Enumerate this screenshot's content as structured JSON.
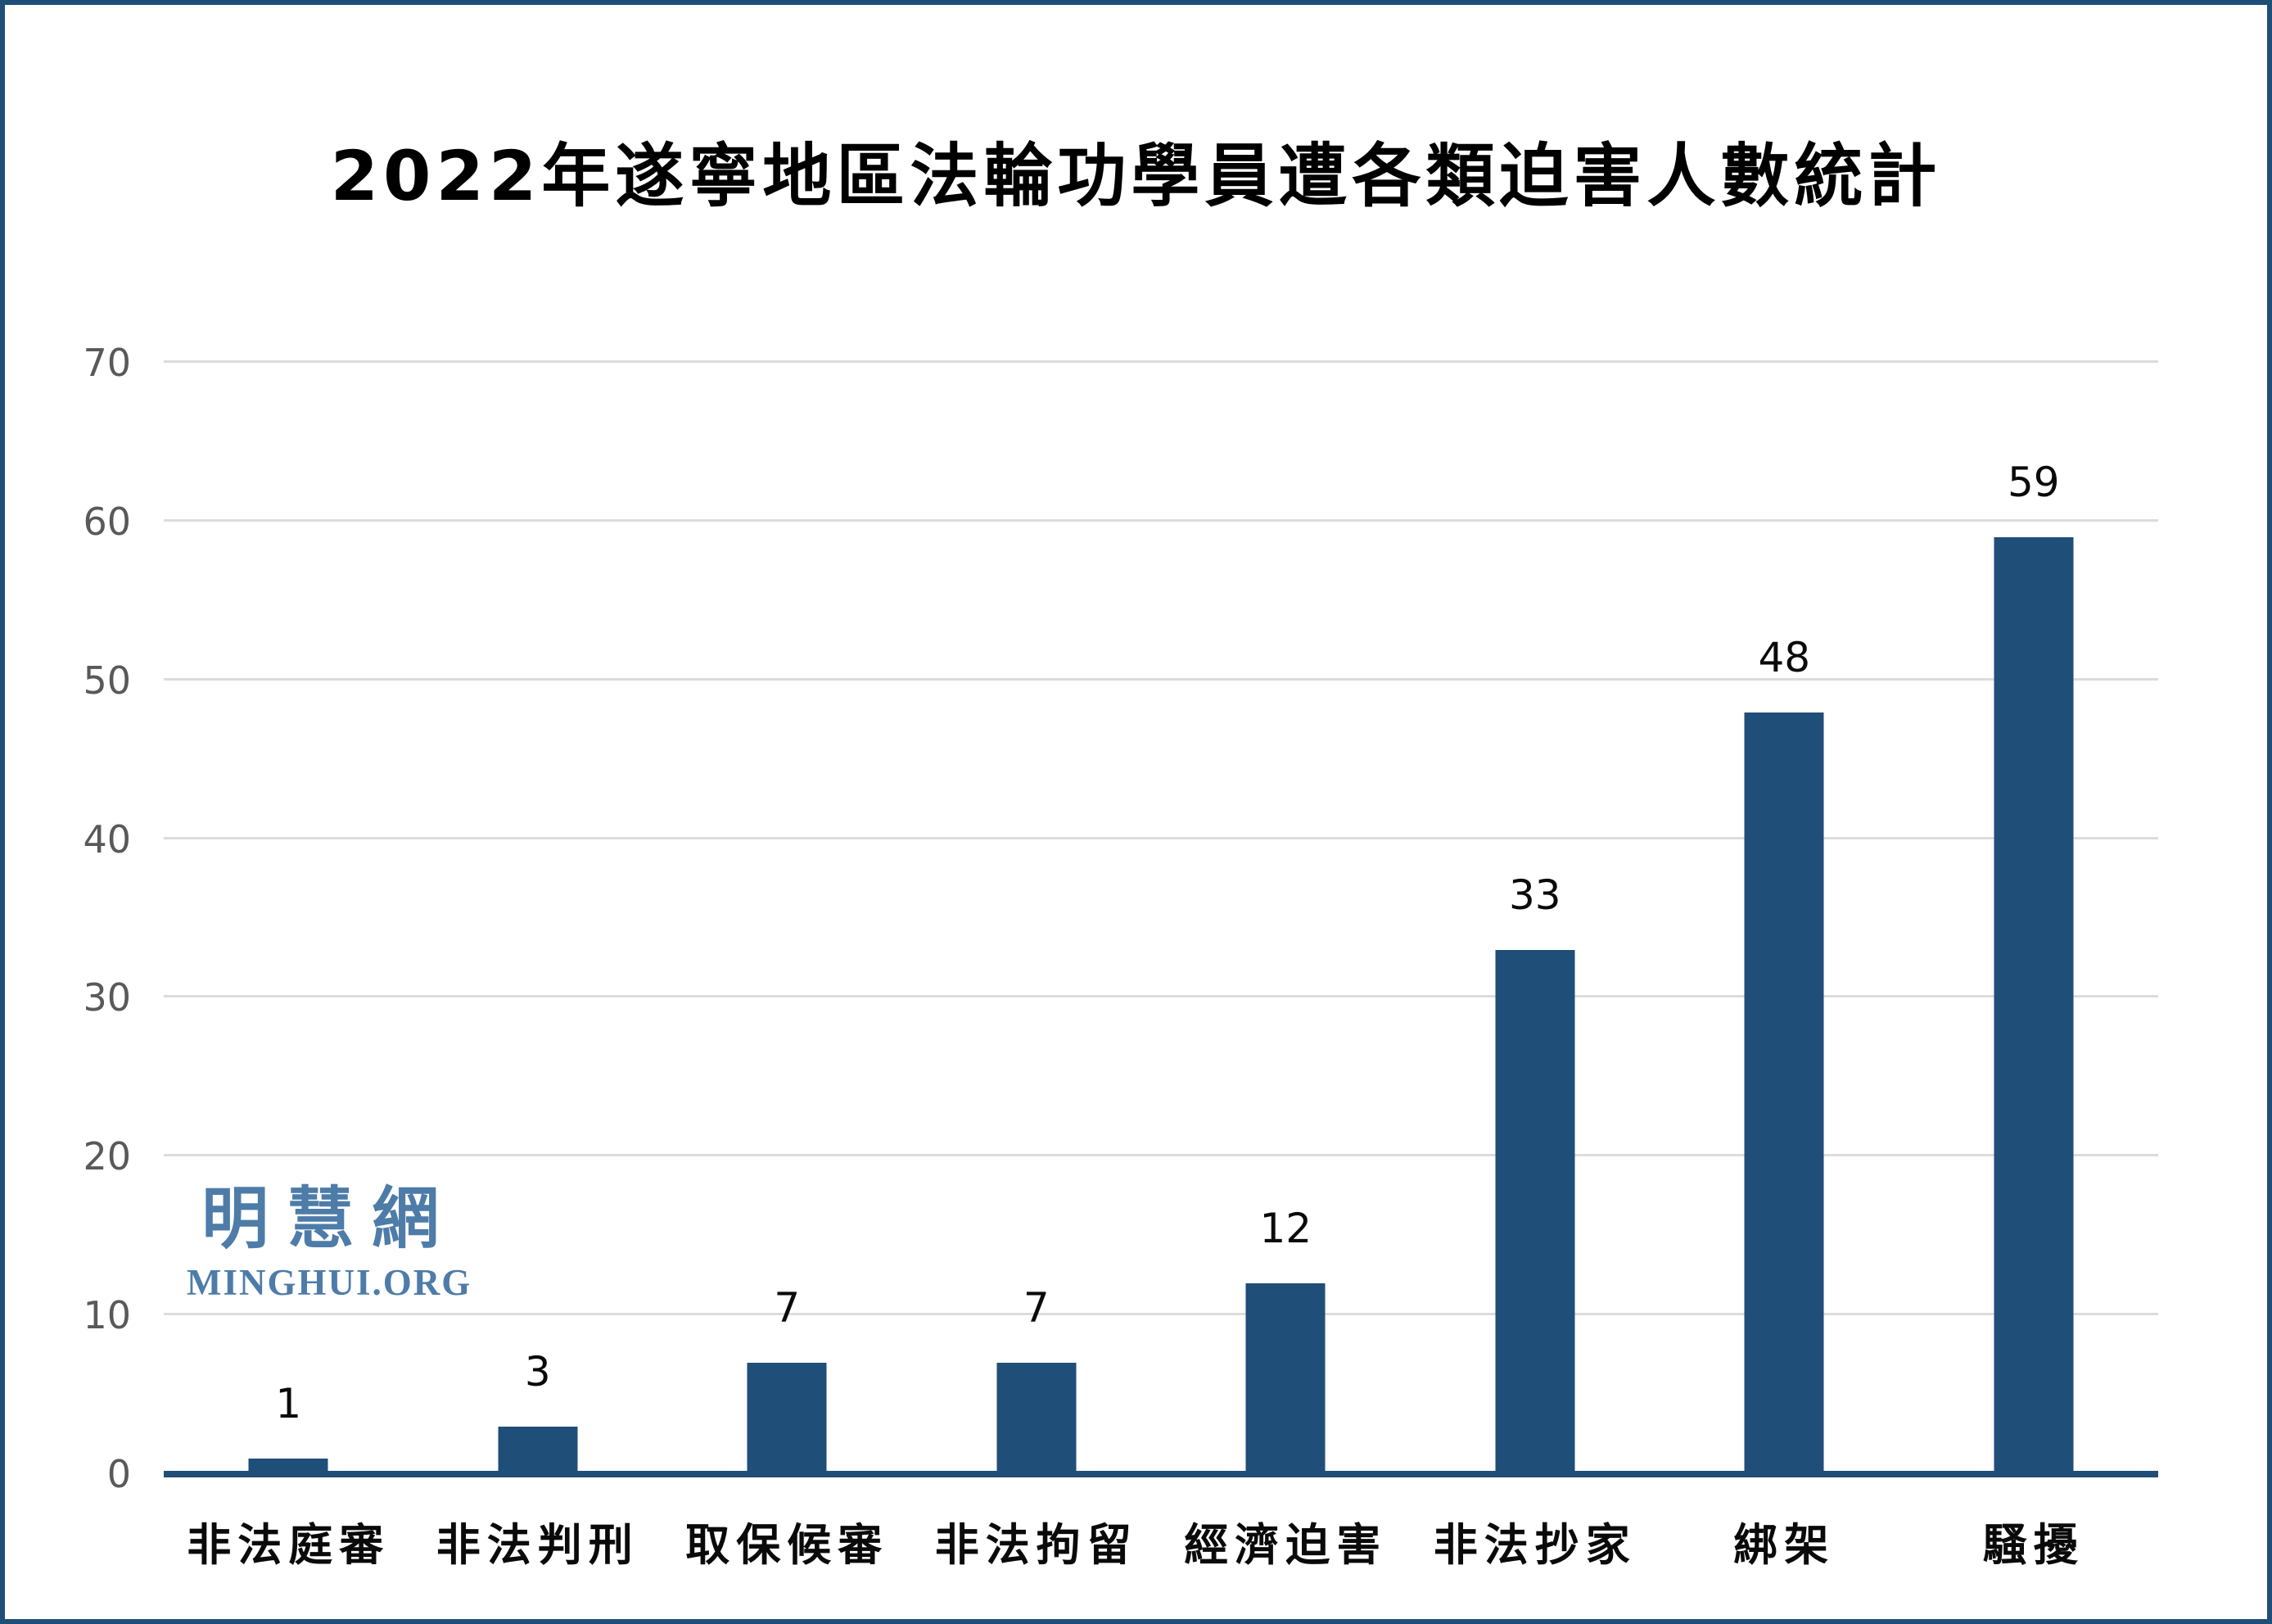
{
  "chart_data": {
    "type": "bar",
    "title": "2022年遂寧地區法輪功學員遭各類迫害人數統計",
    "categories": [
      "非法庭審",
      "非法判刑",
      "取保候審",
      "非法拘留",
      "經濟迫害",
      "非法抄家",
      "綁架",
      "騷擾"
    ],
    "values": [
      1,
      3,
      7,
      7,
      12,
      33,
      48,
      59
    ],
    "xlabel": "",
    "ylabel": "",
    "ylim": [
      0,
      70
    ],
    "yticks": [
      0,
      10,
      20,
      30,
      40,
      50,
      60,
      70
    ],
    "grid": true,
    "legend_position": "none",
    "value_labels_shown": true
  },
  "watermark": {
    "cjk": "明慧網",
    "latin": "MINGHUI.ORG"
  },
  "colors": {
    "bar": "#1f4e78",
    "baseline": "#1f4e78",
    "gridline": "#dcdcdc",
    "tick_text": "#595959",
    "value_text": "#0a0a0a",
    "frame_border": "#1f4e79",
    "watermark": "#4e7ca8",
    "background": "#ffffff"
  }
}
